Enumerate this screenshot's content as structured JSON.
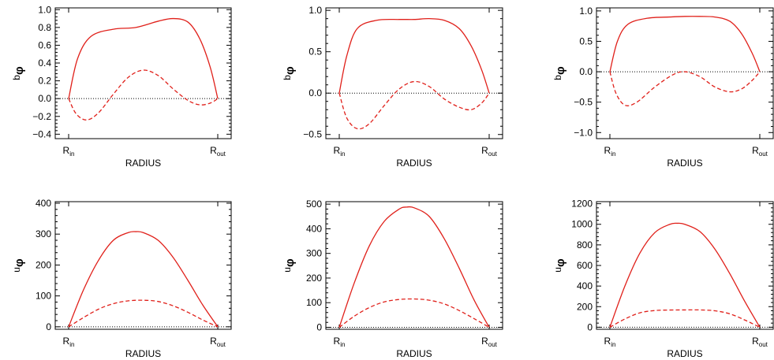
{
  "chart_data": [
    {
      "type": "line",
      "xlabel": "RADIUS",
      "ylabel": "b",
      "ylabel_sub": "φ",
      "x_ticks": [
        {
          "label": "R",
          "sub": "in",
          "x": 0
        },
        {
          "label": "R",
          "sub": "out",
          "x": 1
        }
      ],
      "xlim": [
        0,
        1
      ],
      "ylim": [
        -0.45,
        1.02
      ],
      "yticks": [
        -0.4,
        -0.2,
        0.0,
        0.2,
        0.4,
        0.6,
        0.8,
        1.0
      ],
      "ytick_labels": [
        "−0.4",
        "−0.2",
        "0.0",
        "0.2",
        "0.4",
        "0.6",
        "0.8",
        "1.0"
      ],
      "zero_line": true,
      "series": [
        {
          "style": "solid",
          "color": "#e0201a",
          "points": [
            [
              0,
              0
            ],
            [
              0.06,
              0.45
            ],
            [
              0.15,
              0.7
            ],
            [
              0.3,
              0.78
            ],
            [
              0.45,
              0.8
            ],
            [
              0.6,
              0.87
            ],
            [
              0.7,
              0.9
            ],
            [
              0.8,
              0.86
            ],
            [
              0.88,
              0.67
            ],
            [
              0.95,
              0.35
            ],
            [
              1,
              0
            ]
          ]
        },
        {
          "style": "dashed",
          "color": "#e0201a",
          "points": [
            [
              0,
              0
            ],
            [
              0.05,
              -0.17
            ],
            [
              0.12,
              -0.24
            ],
            [
              0.2,
              -0.16
            ],
            [
              0.3,
              0.05
            ],
            [
              0.4,
              0.24
            ],
            [
              0.5,
              0.32
            ],
            [
              0.6,
              0.26
            ],
            [
              0.7,
              0.11
            ],
            [
              0.8,
              -0.02
            ],
            [
              0.88,
              -0.07
            ],
            [
              0.95,
              -0.05
            ],
            [
              1,
              0
            ]
          ]
        }
      ]
    },
    {
      "type": "line",
      "xlabel": "RADIUS",
      "ylabel": "b",
      "ylabel_sub": "φ",
      "x_ticks": [
        {
          "label": "R",
          "sub": "in",
          "x": 0
        },
        {
          "label": "R",
          "sub": "out",
          "x": 1
        }
      ],
      "xlim": [
        0,
        1
      ],
      "ylim": [
        -0.55,
        1.03
      ],
      "yticks": [
        -0.5,
        0.0,
        0.5,
        1.0
      ],
      "ytick_labels": [
        "−0.5",
        "0.0",
        "0.5",
        "1.0"
      ],
      "zero_line": true,
      "series": [
        {
          "style": "solid",
          "color": "#e0201a",
          "points": [
            [
              0,
              0
            ],
            [
              0.05,
              0.45
            ],
            [
              0.12,
              0.78
            ],
            [
              0.25,
              0.88
            ],
            [
              0.4,
              0.89
            ],
            [
              0.5,
              0.89
            ],
            [
              0.6,
              0.9
            ],
            [
              0.7,
              0.88
            ],
            [
              0.8,
              0.78
            ],
            [
              0.88,
              0.57
            ],
            [
              0.95,
              0.28
            ],
            [
              1,
              0
            ]
          ]
        },
        {
          "style": "dashed",
          "color": "#e0201a",
          "points": [
            [
              0,
              0
            ],
            [
              0.05,
              -0.3
            ],
            [
              0.12,
              -0.43
            ],
            [
              0.2,
              -0.37
            ],
            [
              0.3,
              -0.15
            ],
            [
              0.4,
              0.05
            ],
            [
              0.5,
              0.14
            ],
            [
              0.6,
              0.08
            ],
            [
              0.7,
              -0.07
            ],
            [
              0.8,
              -0.17
            ],
            [
              0.88,
              -0.2
            ],
            [
              0.95,
              -0.12
            ],
            [
              1,
              0
            ]
          ]
        }
      ]
    },
    {
      "type": "line",
      "xlabel": "RADIUS",
      "ylabel": "b",
      "ylabel_sub": "φ",
      "x_ticks": [
        {
          "label": "R",
          "sub": "in",
          "x": 0
        },
        {
          "label": "R",
          "sub": "out",
          "x": 1
        }
      ],
      "xlim": [
        0,
        1
      ],
      "ylim": [
        -1.1,
        1.05
      ],
      "yticks": [
        -1.0,
        -0.5,
        0.0,
        0.5,
        1.0
      ],
      "ytick_labels": [
        "−1.0",
        "−0.5",
        "0.0",
        "0.5",
        "1.0"
      ],
      "zero_line": true,
      "series": [
        {
          "style": "solid",
          "color": "#e0201a",
          "points": [
            [
              0,
              0
            ],
            [
              0.05,
              0.5
            ],
            [
              0.12,
              0.78
            ],
            [
              0.25,
              0.88
            ],
            [
              0.4,
              0.9
            ],
            [
              0.5,
              0.91
            ],
            [
              0.6,
              0.91
            ],
            [
              0.7,
              0.9
            ],
            [
              0.8,
              0.83
            ],
            [
              0.88,
              0.62
            ],
            [
              0.95,
              0.3
            ],
            [
              1,
              0
            ]
          ]
        },
        {
          "style": "dashed",
          "color": "#e0201a",
          "points": [
            [
              0,
              0
            ],
            [
              0.04,
              -0.35
            ],
            [
              0.1,
              -0.55
            ],
            [
              0.18,
              -0.5
            ],
            [
              0.3,
              -0.25
            ],
            [
              0.42,
              -0.05
            ],
            [
              0.5,
              0.0
            ],
            [
              0.6,
              -0.08
            ],
            [
              0.7,
              -0.25
            ],
            [
              0.8,
              -0.33
            ],
            [
              0.88,
              -0.28
            ],
            [
              0.95,
              -0.14
            ],
            [
              1,
              0
            ]
          ]
        }
      ]
    },
    {
      "type": "line",
      "xlabel": "RADIUS",
      "ylabel": "u",
      "ylabel_sub": "φ",
      "x_ticks": [
        {
          "label": "R",
          "sub": "in",
          "x": 0
        },
        {
          "label": "R",
          "sub": "out",
          "x": 1
        }
      ],
      "xlim": [
        0,
        1
      ],
      "ylim": [
        -8,
        405
      ],
      "yticks": [
        0,
        100,
        200,
        300,
        400
      ],
      "ytick_labels": [
        "0",
        "100",
        "200",
        "300",
        "400"
      ],
      "zero_line": true,
      "series": [
        {
          "style": "solid",
          "color": "#e0201a",
          "points": [
            [
              0,
              0
            ],
            [
              0.1,
              120
            ],
            [
              0.2,
              215
            ],
            [
              0.3,
              280
            ],
            [
              0.4,
              305
            ],
            [
              0.45,
              308
            ],
            [
              0.5,
              305
            ],
            [
              0.6,
              280
            ],
            [
              0.7,
              225
            ],
            [
              0.8,
              150
            ],
            [
              0.9,
              70
            ],
            [
              1,
              0
            ]
          ]
        },
        {
          "style": "dashed",
          "color": "#e0201a",
          "points": [
            [
              0,
              0
            ],
            [
              0.1,
              30
            ],
            [
              0.2,
              57
            ],
            [
              0.3,
              75
            ],
            [
              0.4,
              84
            ],
            [
              0.5,
              86
            ],
            [
              0.6,
              82
            ],
            [
              0.7,
              68
            ],
            [
              0.8,
              47
            ],
            [
              0.9,
              22
            ],
            [
              1,
              0
            ]
          ]
        }
      ]
    },
    {
      "type": "line",
      "xlabel": "RADIUS",
      "ylabel": "u",
      "ylabel_sub": "φ",
      "x_ticks": [
        {
          "label": "R",
          "sub": "in",
          "x": 0
        },
        {
          "label": "R",
          "sub": "out",
          "x": 1
        }
      ],
      "xlim": [
        0,
        1
      ],
      "ylim": [
        -8,
        510
      ],
      "yticks": [
        0,
        100,
        200,
        300,
        400,
        500
      ],
      "ytick_labels": [
        "0",
        "100",
        "200",
        "300",
        "400",
        "500"
      ],
      "zero_line": true,
      "series": [
        {
          "style": "solid",
          "color": "#e0201a",
          "points": [
            [
              0,
              0
            ],
            [
              0.1,
              180
            ],
            [
              0.2,
              330
            ],
            [
              0.3,
              430
            ],
            [
              0.4,
              480
            ],
            [
              0.45,
              488
            ],
            [
              0.5,
              485
            ],
            [
              0.6,
              450
            ],
            [
              0.7,
              360
            ],
            [
              0.8,
              240
            ],
            [
              0.9,
              110
            ],
            [
              1,
              0
            ]
          ]
        },
        {
          "style": "dashed",
          "color": "#e0201a",
          "points": [
            [
              0,
              0
            ],
            [
              0.1,
              45
            ],
            [
              0.2,
              80
            ],
            [
              0.3,
              103
            ],
            [
              0.4,
              113
            ],
            [
              0.5,
              115
            ],
            [
              0.6,
              110
            ],
            [
              0.7,
              95
            ],
            [
              0.8,
              68
            ],
            [
              0.9,
              35
            ],
            [
              1,
              0
            ]
          ]
        }
      ]
    },
    {
      "type": "line",
      "xlabel": "RADIUS",
      "ylabel": "u",
      "ylabel_sub": "φ",
      "x_ticks": [
        {
          "label": "R",
          "sub": "in",
          "x": 0
        },
        {
          "label": "R",
          "sub": "out",
          "x": 1
        }
      ],
      "xlim": [
        0,
        1
      ],
      "ylim": [
        -20,
        1220
      ],
      "yticks": [
        0,
        200,
        400,
        600,
        800,
        1000,
        1200
      ],
      "ytick_labels": [
        "0",
        "200",
        "400",
        "600",
        "800",
        "1000",
        "1200"
      ],
      "zero_line": true,
      "series": [
        {
          "style": "solid",
          "color": "#e0201a",
          "points": [
            [
              0,
              0
            ],
            [
              0.1,
              400
            ],
            [
              0.2,
              720
            ],
            [
              0.3,
              920
            ],
            [
              0.4,
              1000
            ],
            [
              0.45,
              1010
            ],
            [
              0.5,
              1000
            ],
            [
              0.6,
              930
            ],
            [
              0.7,
              760
            ],
            [
              0.8,
              520
            ],
            [
              0.9,
              250
            ],
            [
              1,
              0
            ]
          ]
        },
        {
          "style": "dashed",
          "color": "#e0201a",
          "points": [
            [
              0,
              0
            ],
            [
              0.1,
              80
            ],
            [
              0.2,
              140
            ],
            [
              0.3,
              162
            ],
            [
              0.4,
              167
            ],
            [
              0.5,
              168
            ],
            [
              0.6,
              168
            ],
            [
              0.7,
              160
            ],
            [
              0.8,
              130
            ],
            [
              0.9,
              70
            ],
            [
              1,
              0
            ]
          ]
        }
      ]
    }
  ]
}
